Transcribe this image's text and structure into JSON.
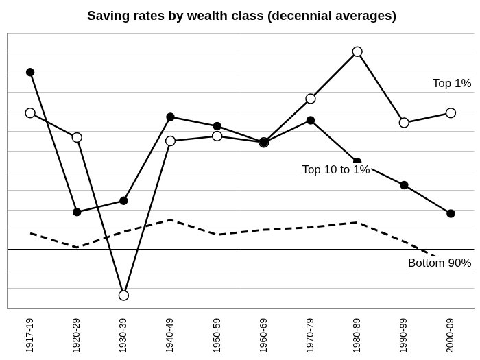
{
  "chart_data": {
    "type": "line",
    "title": "Saving rates by wealth class (decennial averages)",
    "categories": [
      "1917-19",
      "1920-29",
      "1930-39",
      "1940-49",
      "1950-59",
      "1960-69",
      "1970-79",
      "1980-89",
      "1990-99",
      "2000-09"
    ],
    "series": [
      {
        "name": "Top 1%",
        "color": "#000000",
        "marker": "circle-open",
        "line_style": "solid",
        "values": [
          27.8,
          22.8,
          -9.4,
          22.1,
          23.1,
          21.8,
          30.7,
          40.3,
          25.8,
          27.8
        ]
      },
      {
        "name": "Top 10 to 1%",
        "color": "#000000",
        "marker": "circle",
        "line_style": "solid",
        "values": [
          36.1,
          7.6,
          9.9,
          27.0,
          25.1,
          21.8,
          26.3,
          17.8,
          13.1,
          7.3
        ]
      },
      {
        "name": "Bottom 90%",
        "color": "#000000",
        "marker": "none",
        "line_style": "dashed",
        "values": [
          3.3,
          0.4,
          3.6,
          6.0,
          3.0,
          4.0,
          4.5,
          5.5,
          1.6,
          -3.0
        ]
      }
    ],
    "ylim": [
      -12,
      44
    ],
    "yticks": [
      -12,
      -8,
      -4,
      0,
      4,
      8,
      12,
      16,
      20,
      24,
      28,
      32,
      36,
      40,
      44
    ],
    "grid": true,
    "tick_labels": "x"
  }
}
